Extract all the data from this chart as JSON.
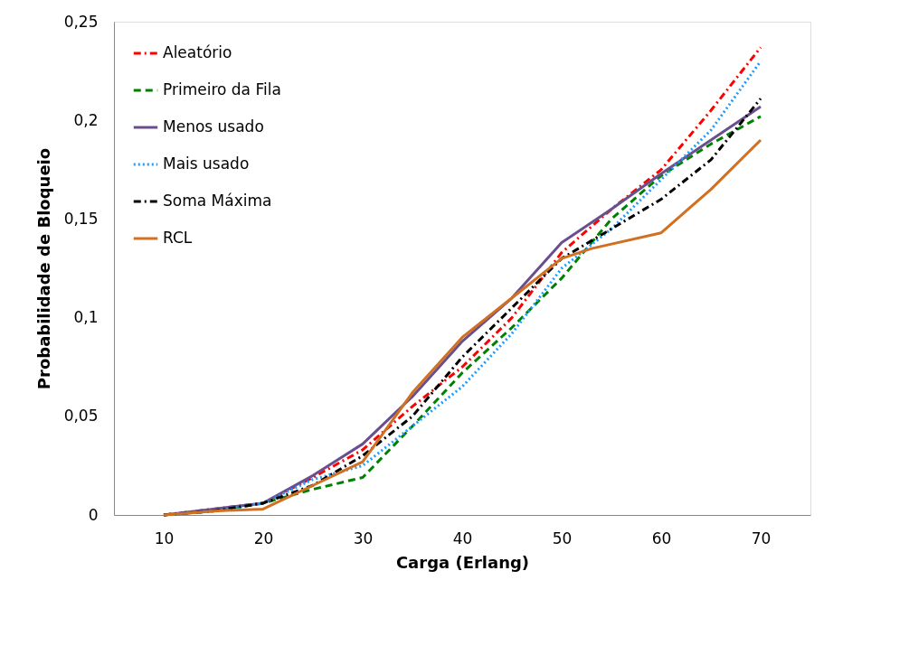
{
  "chart_data": {
    "type": "line",
    "xlabel": "Carga (Erlang)",
    "ylabel": "Probabilidade de Bloqueio",
    "x": [
      10,
      15,
      20,
      25,
      30,
      35,
      40,
      45,
      50,
      55,
      60,
      65,
      70
    ],
    "xlim": [
      5,
      75
    ],
    "xticks": [
      10,
      20,
      30,
      40,
      50,
      60,
      70
    ],
    "ylim": [
      0,
      0.25
    ],
    "yticks": [
      {
        "value": 0,
        "label": "0"
      },
      {
        "value": 0.05,
        "label": "0,05"
      },
      {
        "value": 0.1,
        "label": "0,1"
      },
      {
        "value": 0.15,
        "label": "0,15"
      },
      {
        "value": 0.2,
        "label": "0,2"
      },
      {
        "value": 0.25,
        "label": "0,25"
      }
    ],
    "grid": false,
    "legend": "top left",
    "marker": "none",
    "series": [
      {
        "name": "Aleatório",
        "color": "#ff0000",
        "line_style": "dashdot",
        "values": [
          0,
          0.003,
          0.006,
          0.019,
          0.033,
          0.055,
          0.075,
          0.1,
          0.133,
          0.155,
          0.175,
          0.205,
          0.237
        ]
      },
      {
        "name": "Primeiro da Fila",
        "color": "#008000",
        "line_style": "dashed",
        "values": [
          0,
          0.002,
          0.006,
          0.013,
          0.019,
          0.045,
          0.072,
          0.095,
          0.12,
          0.15,
          0.172,
          0.188,
          0.202
        ]
      },
      {
        "name": "Menos usado",
        "color": "#6a4f8f",
        "line_style": "solid",
        "values": [
          0,
          0.003,
          0.006,
          0.02,
          0.036,
          0.06,
          0.088,
          0.11,
          0.138,
          0.155,
          0.173,
          0.19,
          0.207
        ]
      },
      {
        "name": "Mais usado",
        "color": "#1e9bff",
        "line_style": "dotted",
        "values": [
          0,
          0.002,
          0.006,
          0.018,
          0.025,
          0.045,
          0.065,
          0.092,
          0.125,
          0.145,
          0.17,
          0.195,
          0.23
        ]
      },
      {
        "name": "Soma Máxima",
        "color": "#000000",
        "line_style": "dashdot",
        "values": [
          0,
          0.002,
          0.006,
          0.015,
          0.03,
          0.05,
          0.08,
          0.105,
          0.13,
          0.145,
          0.16,
          0.18,
          0.211
        ]
      },
      {
        "name": "RCL",
        "color": "#d07020",
        "line_style": "solid",
        "x": [
          10,
          15,
          20,
          25,
          30,
          35,
          40,
          45,
          50,
          53,
          60,
          65,
          70
        ],
        "values": [
          0,
          0.002,
          0.003,
          0.015,
          0.027,
          0.062,
          0.09,
          0.11,
          0.13,
          0.135,
          0.143,
          0.165,
          0.19
        ]
      }
    ]
  }
}
